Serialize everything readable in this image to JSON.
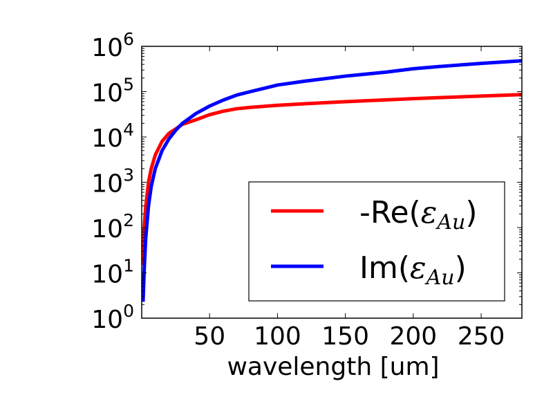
{
  "chart_data": {
    "type": "line",
    "title": "",
    "xlabel": "wavelength [um]",
    "ylabel": "",
    "y_scale": "log",
    "xlim": [
      0,
      280
    ],
    "ylim": [
      1,
      1000000
    ],
    "grid": false,
    "legend_position": "lower-right",
    "x_ticks": [
      50,
      100,
      150,
      200,
      250
    ],
    "x_tick_labels": [
      "50",
      "100",
      "150",
      "200",
      "250"
    ],
    "y_ticks": [
      1,
      10,
      100,
      1000,
      10000,
      100000,
      1000000
    ],
    "y_tick_labels": [
      {
        "base": "10",
        "exp": "0"
      },
      {
        "base": "10",
        "exp": "1"
      },
      {
        "base": "10",
        "exp": "2"
      },
      {
        "base": "10",
        "exp": "3"
      },
      {
        "base": "10",
        "exp": "4"
      },
      {
        "base": "10",
        "exp": "5"
      },
      {
        "base": "10",
        "exp": "6"
      }
    ],
    "series": [
      {
        "name": "-Re(εAu)",
        "legend_prefix": "-Re(",
        "legend_symbol": "ε",
        "legend_subscript": "Au",
        "legend_suffix": ")",
        "color": "#ff0000",
        "x": [
          1,
          2,
          3,
          5,
          7,
          10,
          15,
          20,
          25,
          30,
          40,
          50,
          60,
          70,
          80,
          100,
          120,
          150,
          180,
          200,
          220,
          250,
          280
        ],
        "y": [
          15,
          120,
          300,
          1000,
          2000,
          4000,
          8000,
          12000,
          15000,
          19000,
          24000,
          31000,
          37000,
          42000,
          45000,
          50000,
          54000,
          60000,
          66000,
          70000,
          74000,
          80000,
          86000
        ]
      },
      {
        "name": "Im(εAu)",
        "legend_prefix": "Im(",
        "legend_symbol": "ε",
        "legend_subscript": "Au",
        "legend_suffix": ")",
        "color": "#0000ff",
        "x": [
          1,
          2,
          3,
          5,
          7,
          10,
          15,
          20,
          25,
          30,
          40,
          50,
          60,
          70,
          80,
          100,
          120,
          150,
          180,
          200,
          220,
          250,
          280
        ],
        "y": [
          2.3,
          15,
          60,
          300,
          800,
          2000,
          5000,
          9000,
          14000,
          20000,
          33000,
          48000,
          65000,
          84000,
          100000,
          140000,
          170000,
          220000,
          270000,
          320000,
          360000,
          420000,
          480000
        ]
      }
    ]
  }
}
